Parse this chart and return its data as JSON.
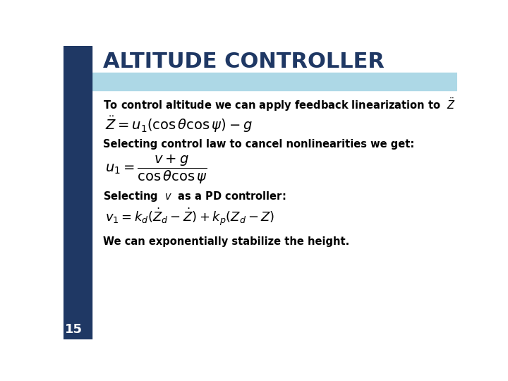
{
  "title": "ALTITUDE CONTROLLER",
  "title_color": "#1F3864",
  "title_fontsize": 22,
  "left_bar_color": "#1F3864",
  "header_band_color": "#ADD8E6",
  "background_color": "#FFFFFF",
  "slide_number": "15",
  "text1": "To control altitude we can apply feedback linearization to",
  "text2": "Selecting control law to cancel nonlinearities we get:",
  "text3": "Selecting",
  "text3b": "as a PD controller:",
  "text4": "We can exponentially stabilize the height."
}
